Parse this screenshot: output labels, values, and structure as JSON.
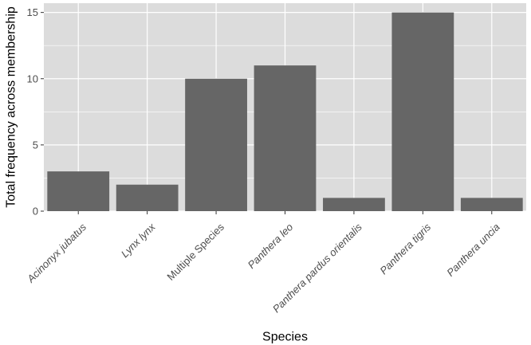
{
  "chart_data": {
    "type": "bar",
    "title": "",
    "xlabel": "Species",
    "ylabel": "Total frequency across membership",
    "categories": [
      "Acinonyx jubatus",
      "Lynx lynx",
      "Multiple Species",
      "Panthera leo",
      "Panthera pardus orientalis",
      "Panthera tigris",
      "Panthera uncia"
    ],
    "italic_categories": [
      true,
      true,
      false,
      true,
      true,
      true,
      true
    ],
    "values": [
      3,
      2,
      10,
      11,
      1,
      15,
      1
    ],
    "yticks": [
      0,
      5,
      10,
      15
    ],
    "ytick_labels": [
      "0",
      "5",
      "10",
      "15"
    ],
    "ylim": [
      0,
      15.7
    ],
    "grid": true,
    "legend": "none"
  },
  "colors": {
    "panel_background": "#dcdcdc",
    "grid_line": "#ffffff",
    "bar_fill": "#666666",
    "tick_label": "#4d4d4d",
    "axis_title": "#000000"
  }
}
